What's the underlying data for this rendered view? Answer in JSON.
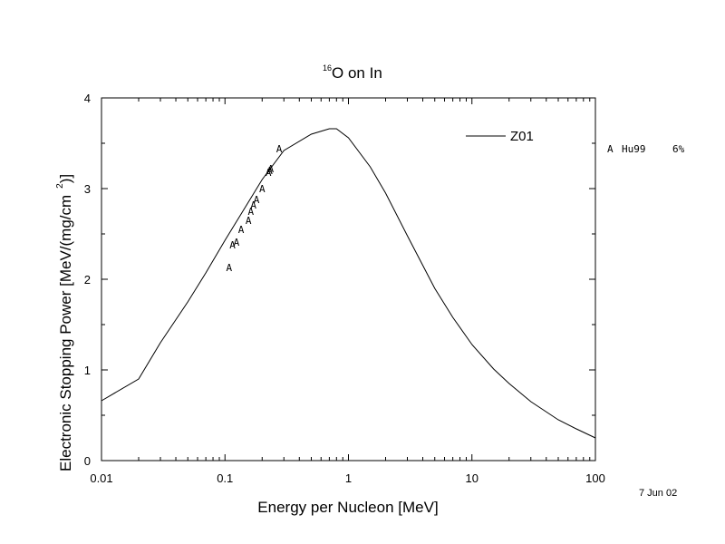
{
  "chart_data": {
    "type": "line",
    "title": "O on In",
    "title_superscript": "16",
    "xlabel": "Energy per Nucleon [MeV]",
    "ylabel": "Electronic Stopping Power [MeV/(mg/cm",
    "ylabel_superscript": "2",
    "ylabel_close": ")]",
    "x_scale": "log",
    "xlim": [
      0.01,
      100
    ],
    "ylim": [
      0,
      4
    ],
    "x_ticks": [
      0.01,
      0.1,
      1,
      10,
      100
    ],
    "x_tick_labels": [
      "0.01",
      "0.1",
      "1",
      "10",
      "100"
    ],
    "y_ticks": [
      0,
      1,
      2,
      3,
      4
    ],
    "y_tick_labels": [
      "0",
      "1",
      "2",
      "3",
      "4"
    ],
    "grid": false,
    "legend_position": "top-right",
    "series": [
      {
        "name": "Z01",
        "kind": "line",
        "color": "#000000",
        "x": [
          0.01,
          0.02,
          0.03,
          0.05,
          0.07,
          0.1,
          0.15,
          0.2,
          0.3,
          0.5,
          0.7,
          0.8,
          1,
          1.5,
          2,
          3,
          5,
          7,
          10,
          15,
          20,
          30,
          50,
          70,
          100
        ],
        "y": [
          0.66,
          0.9,
          1.3,
          1.75,
          2.07,
          2.43,
          2.82,
          3.1,
          3.42,
          3.6,
          3.66,
          3.66,
          3.56,
          3.24,
          2.95,
          2.48,
          1.9,
          1.58,
          1.28,
          1.01,
          0.85,
          0.65,
          0.45,
          0.35,
          0.25
        ]
      },
      {
        "name": "Hu99",
        "kind": "marker",
        "marker": "A",
        "x": [
          0.108,
          0.115,
          0.124,
          0.135,
          0.155,
          0.162,
          0.17,
          0.18,
          0.2,
          0.225,
          0.23,
          0.235,
          0.275
        ],
        "y": [
          2.13,
          2.38,
          2.41,
          2.55,
          2.65,
          2.75,
          2.82,
          2.88,
          3.0,
          3.18,
          3.2,
          3.22,
          3.44
        ]
      }
    ],
    "legend": [
      {
        "label": "Z01",
        "symbol": "line"
      }
    ],
    "side_note": {
      "marker": "A",
      "label": "Hu99",
      "uncertainty": "6%"
    },
    "date": "7 Jun 02"
  }
}
